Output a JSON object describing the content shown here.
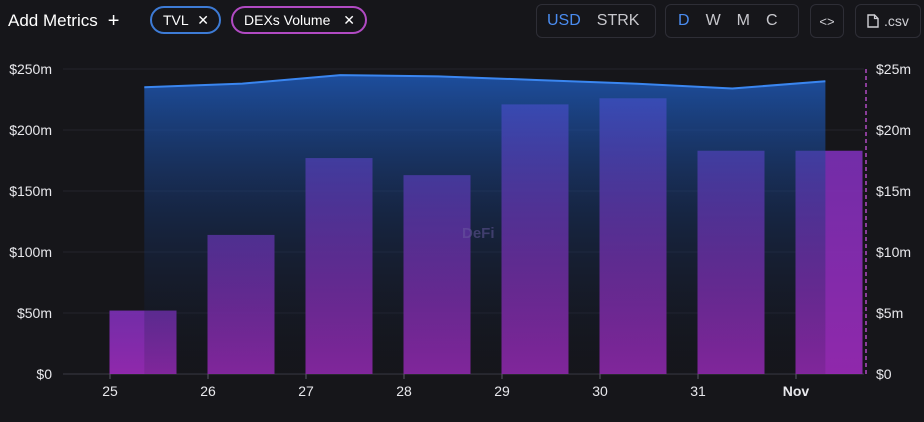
{
  "toolbar": {
    "add_metrics_label": "Add Metrics",
    "add_metrics_icon": "plus-icon",
    "chips": [
      {
        "label": "TVL",
        "color": "#3d7bd6",
        "close_icon": "close-icon"
      },
      {
        "label": "DEXs Volume",
        "color": "#b14ac3",
        "close_icon": "close-icon"
      }
    ],
    "currency_options": [
      {
        "label": "USD",
        "active": true
      },
      {
        "label": "STRK",
        "active": false
      }
    ],
    "period_options": [
      {
        "label": "D",
        "active": true
      },
      {
        "label": "W",
        "active": false
      },
      {
        "label": "M",
        "active": false
      },
      {
        "label": "C",
        "active": false
      }
    ],
    "embed_icon": "code-icon",
    "csv_label": ".csv",
    "csv_icon": "file-icon"
  },
  "watermark": "DeFi",
  "chart_data": {
    "type": "bar+area",
    "categories": [
      "25",
      "26",
      "27",
      "28",
      "29",
      "30",
      "31",
      "Nov"
    ],
    "series": [
      {
        "name": "TVL",
        "type": "area",
        "axis": "left",
        "color": "#2a6ed3",
        "x": [
          25.35,
          26.35,
          27.35,
          28.35,
          29.35,
          30.35,
          31.35,
          32.3
        ],
        "values": [
          235,
          238,
          245,
          244,
          241,
          238,
          234,
          240
        ]
      },
      {
        "name": "DEXs Volume",
        "type": "bar",
        "axis": "right",
        "color": "#8e2fb0",
        "values": [
          5.2,
          11.4,
          17.7,
          16.3,
          22.1,
          22.6,
          18.3,
          18.3
        ]
      }
    ],
    "y_left": {
      "ticks": [
        "$0",
        "$50m",
        "$100m",
        "$150m",
        "$200m",
        "$250m"
      ],
      "range": [
        0,
        250
      ]
    },
    "y_right": {
      "ticks": [
        "$0",
        "$5m",
        "$10m",
        "$15m",
        "$20m",
        "$25m"
      ],
      "range": [
        0,
        25
      ]
    },
    "grid": true,
    "legend": "none"
  }
}
